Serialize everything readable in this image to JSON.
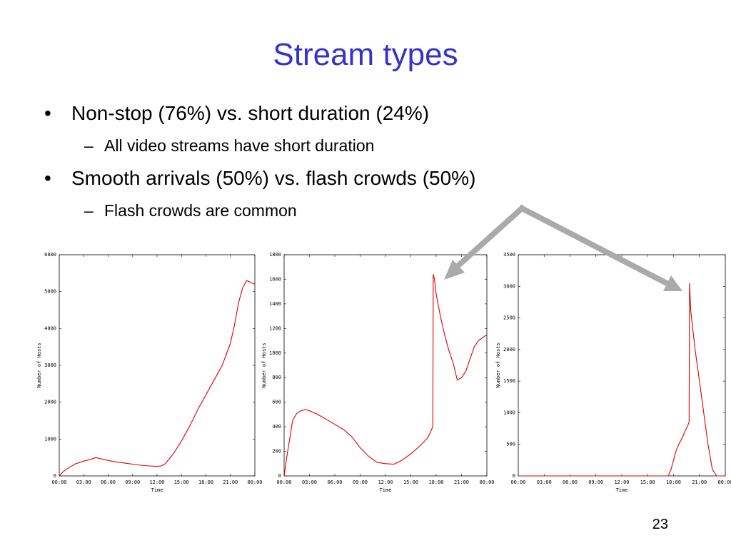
{
  "slide": {
    "title": "Stream types",
    "page_number": "23",
    "bullets": [
      {
        "marker": "•",
        "text": "Non-stop (76%) vs. short duration (24%)",
        "sub": {
          "marker": "–",
          "text": "All video streams have short duration"
        }
      },
      {
        "marker": "•",
        "text": "Smooth arrivals (50%) vs. flash crowds (50%)",
        "sub": {
          "marker": "–",
          "text": "Flash crowds are common"
        }
      }
    ],
    "colors": {
      "title": "#3333cc",
      "line": "#e00000",
      "arrow": "#aaaaaa"
    }
  },
  "chart_data": [
    {
      "type": "line",
      "xlabel": "Time",
      "ylabel": "Number of Hosts",
      "x_ticks": [
        "00:00",
        "03:00",
        "06:00",
        "09:00",
        "12:00",
        "15:00",
        "18:00",
        "21:00",
        "00:00"
      ],
      "y_ticks": [
        0,
        1000,
        2000,
        3000,
        4000,
        5000,
        6000
      ],
      "xlim": [
        0,
        24
      ],
      "ylim": [
        0,
        6000
      ],
      "series": [
        {
          "x": [
            0,
            0.5,
            1,
            2,
            3,
            4,
            4.5,
            5,
            6,
            7,
            8,
            9,
            10,
            11,
            12,
            12.5,
            13,
            14,
            15,
            16,
            17,
            18,
            19,
            20,
            21,
            21.5,
            22,
            22.5,
            23,
            23.5,
            24
          ],
          "y": [
            0,
            120,
            200,
            330,
            400,
            460,
            500,
            470,
            420,
            380,
            350,
            320,
            290,
            270,
            260,
            270,
            330,
            600,
            950,
            1350,
            1800,
            2200,
            2600,
            3000,
            3600,
            4100,
            4700,
            5100,
            5300,
            5250,
            5200
          ]
        }
      ]
    },
    {
      "type": "line",
      "xlabel": "Time",
      "ylabel": "Number of Hosts",
      "x_ticks": [
        "00:00",
        "03:00",
        "06:00",
        "09:00",
        "12:00",
        "15:00",
        "18:00",
        "21:00",
        "00:00"
      ],
      "y_ticks": [
        0,
        200,
        400,
        600,
        800,
        1000,
        1200,
        1400,
        1600,
        1800
      ],
      "xlim": [
        0,
        24
      ],
      "ylim": [
        0,
        1800
      ],
      "series": [
        {
          "x": [
            0,
            0.3,
            0.7,
            1,
            1.5,
            2,
            2.5,
            3,
            4,
            5,
            6,
            7,
            8,
            9,
            10,
            11,
            12,
            13,
            14,
            15,
            16,
            17,
            17.6,
            17.65,
            17.8,
            18,
            18.5,
            19,
            19.5,
            20,
            20.5,
            21,
            21.5,
            22,
            22.5,
            23,
            24
          ],
          "y": [
            0,
            150,
            320,
            450,
            510,
            530,
            540,
            530,
            500,
            460,
            420,
            380,
            320,
            230,
            160,
            110,
            100,
            95,
            130,
            180,
            240,
            310,
            400,
            1640,
            1600,
            1480,
            1300,
            1150,
            1020,
            920,
            780,
            800,
            850,
            950,
            1050,
            1100,
            1150
          ]
        }
      ]
    },
    {
      "type": "line",
      "xlabel": "Time",
      "ylabel": "Number of Hosts",
      "x_ticks": [
        "00:00",
        "03:00",
        "06:00",
        "09:00",
        "12:00",
        "15:00",
        "18:00",
        "21:00",
        "00:00"
      ],
      "y_ticks": [
        0,
        500,
        1000,
        1500,
        2000,
        2500,
        3000,
        3500
      ],
      "xlim": [
        0,
        24
      ],
      "ylim": [
        0,
        3500
      ],
      "series": [
        {
          "x": [
            0,
            3,
            6,
            9,
            12,
            15,
            17.4,
            17.7,
            18,
            18.3,
            18.6,
            19,
            19.3,
            19.6,
            19.8,
            19.85,
            20,
            20.5,
            21,
            21.5,
            22,
            22.5,
            23,
            24
          ],
          "y": [
            0,
            0,
            0,
            0,
            0,
            0,
            0,
            100,
            250,
            400,
            500,
            600,
            700,
            780,
            850,
            3050,
            2600,
            2000,
            1500,
            1000,
            500,
            100,
            0,
            0
          ]
        }
      ]
    }
  ]
}
